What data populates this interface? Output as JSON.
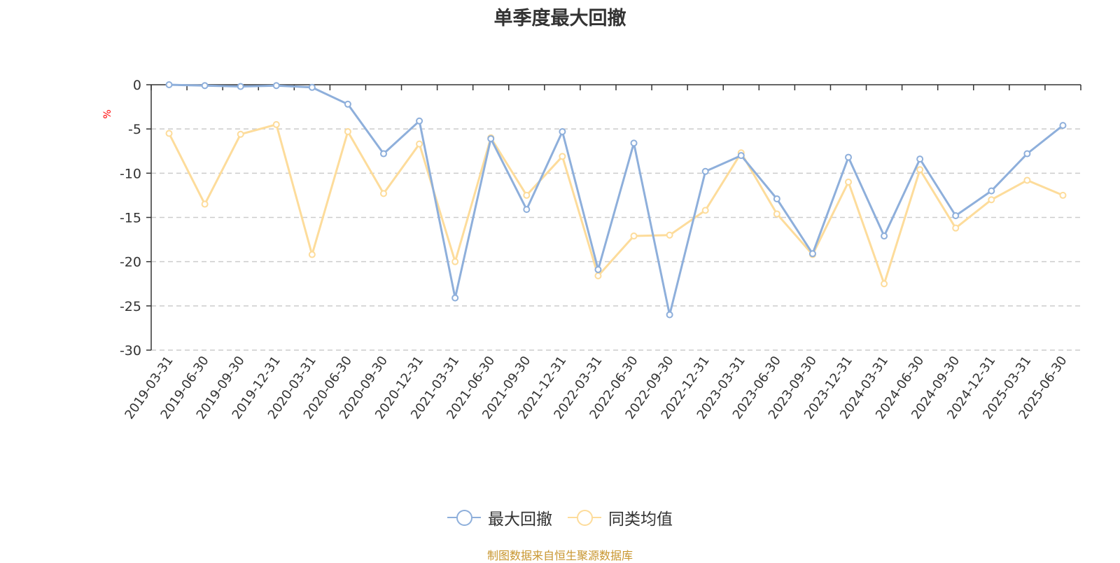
{
  "chart_data": {
    "type": "line",
    "title": "单季度最大回撤",
    "ylabel": "%",
    "ylim": [
      -30,
      0
    ],
    "yticks": [
      0,
      -5,
      -10,
      -15,
      -20,
      -25,
      -30
    ],
    "grid": true,
    "legend_position": "bottom",
    "categories": [
      "2019-03-31",
      "2019-06-30",
      "2019-09-30",
      "2019-12-31",
      "2020-03-31",
      "2020-06-30",
      "2020-09-30",
      "2020-12-31",
      "2021-03-31",
      "2021-06-30",
      "2021-09-30",
      "2021-12-31",
      "2022-03-31",
      "2022-06-30",
      "2022-09-30",
      "2022-12-31",
      "2023-03-31",
      "2023-06-30",
      "2023-09-30",
      "2023-12-31",
      "2024-03-31",
      "2024-06-30",
      "2024-09-30",
      "2024-12-31",
      "2025-03-31",
      "2025-06-30"
    ],
    "series": [
      {
        "name": "最大回撤",
        "color": "#8eafdb",
        "values": [
          0,
          -0.1,
          -0.2,
          -0.1,
          -0.3,
          -2.2,
          -7.8,
          -4.1,
          -24.1,
          -6.1,
          -14.1,
          -5.3,
          -20.9,
          -6.6,
          -26.0,
          -9.8,
          -8.0,
          -12.9,
          -19.1,
          -8.2,
          -17.1,
          -8.4,
          -14.8,
          -12.0,
          -7.8,
          -4.6
        ]
      },
      {
        "name": "同类均值",
        "color": "#fddc9b",
        "values": [
          -5.5,
          -13.5,
          -5.6,
          -4.5,
          -19.2,
          -5.3,
          -12.3,
          -6.7,
          -20.0,
          -6.0,
          -12.5,
          -8.1,
          -21.6,
          -17.1,
          -17.0,
          -14.2,
          -7.7,
          -14.6,
          -19.2,
          -11.0,
          -22.5,
          -9.6,
          -16.2,
          -13.0,
          -10.8,
          -12.5
        ]
      }
    ]
  },
  "source_note": "制图数据来自恒生聚源数据库"
}
